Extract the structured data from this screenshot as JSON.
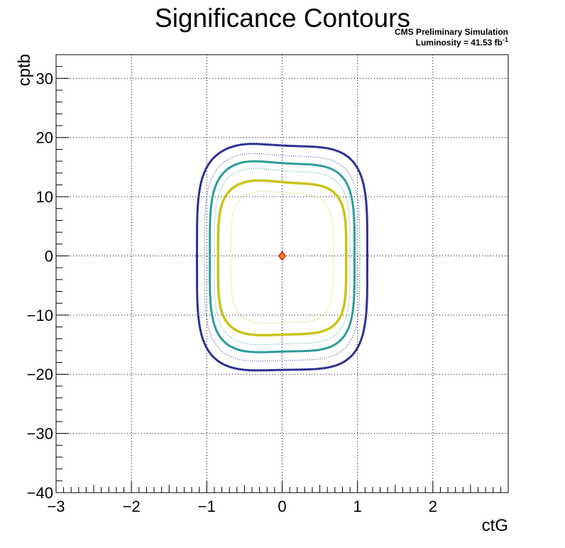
{
  "chart_data": {
    "type": "contour",
    "title": "Significance Contours",
    "xlabel": "ctG",
    "ylabel": "cptb",
    "xlim": [
      -3,
      3
    ],
    "ylim": [
      -40,
      34
    ],
    "x_ticks": [
      -3,
      -2,
      -1,
      0,
      1,
      2
    ],
    "x_tick_labels": [
      "−3",
      "−2",
      "−1",
      "0",
      "1",
      "2"
    ],
    "y_ticks": [
      -40,
      -30,
      -20,
      -10,
      0,
      10,
      20,
      30
    ],
    "y_tick_labels": [
      "−40",
      "−30",
      "−20",
      "−10",
      "0",
      "10",
      "20",
      "30"
    ],
    "grid": true,
    "annotations": {
      "line1": "CMS Preliminary Simulation",
      "line2_prefix": "Luminosity = 41.53 fb",
      "line2_sup": "-1"
    },
    "best_fit_point": {
      "x": 0.0,
      "y": 0.0,
      "color": "#ff8c00",
      "edge_color": "#cc0000"
    },
    "contours": [
      {
        "color": "#2e3192",
        "style": "solid",
        "width": 3,
        "half_x": 1.13,
        "y_top": 18.5,
        "y_bot": -19.2,
        "mid_x": -0.5,
        "amp_y": 0.5
      },
      {
        "color": "#2e3192",
        "style": "dotted",
        "width": 1,
        "half_x": 1.03,
        "y_top": 16.8,
        "y_bot": -17.6,
        "mid_x": -0.5,
        "amp_y": 0.6
      },
      {
        "color": "#2a9d9a",
        "style": "solid",
        "width": 3,
        "half_x": 0.96,
        "y_top": 15.5,
        "y_bot": -16.1,
        "mid_x": -0.5,
        "amp_y": 0.6
      },
      {
        "color": "#2a9d9a",
        "style": "dotted",
        "width": 1,
        "half_x": 0.9,
        "y_top": 14.2,
        "y_bot": -14.8,
        "mid_x": -0.5,
        "amp_y": 0.7
      },
      {
        "color": "#c9c41a",
        "style": "solid",
        "width": 3.5,
        "half_x": 0.85,
        "y_top": 12.2,
        "y_bot": -13.2,
        "mid_x": -0.4,
        "amp_y": 0.6
      },
      {
        "color": "#c9c41a",
        "style": "dotted",
        "width": 1,
        "half_x": 0.68,
        "y_top": 10.5,
        "y_bot": -11.2,
        "mid_x": -0.4,
        "amp_y": 0.5
      }
    ]
  }
}
